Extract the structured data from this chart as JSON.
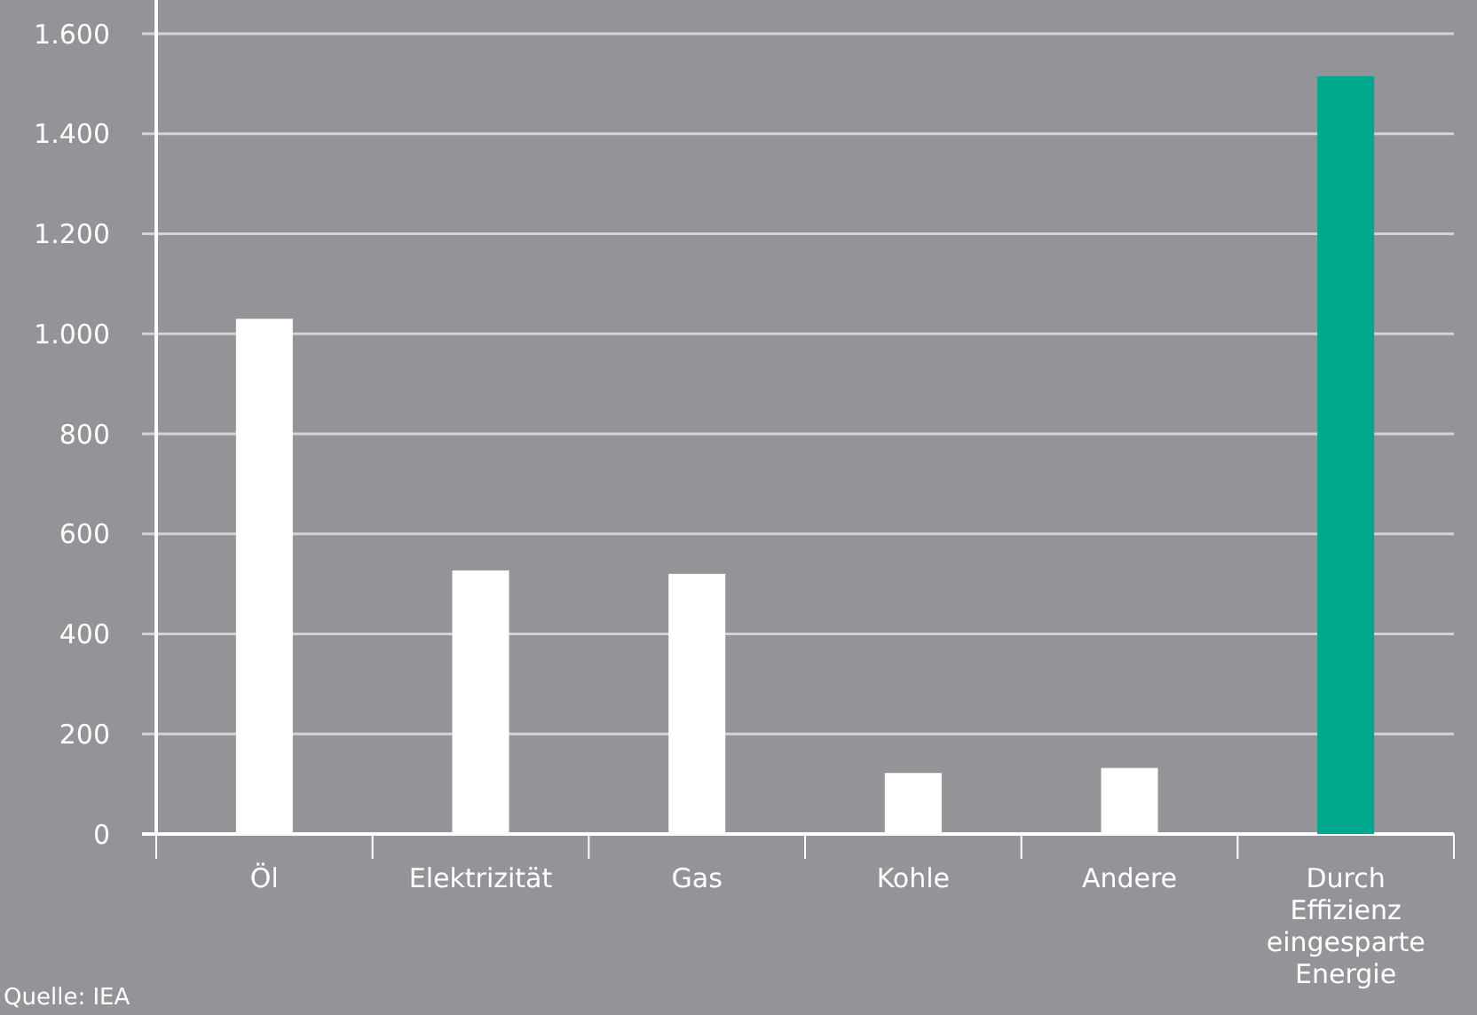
{
  "chart_data": {
    "type": "bar",
    "categories": [
      "Öl",
      "Elektrizität",
      "Gas",
      "Kohle",
      "Andere",
      "Durch Effizienz eingesparte Energie"
    ],
    "values": [
      1030,
      527,
      520,
      122,
      132,
      1515
    ],
    "colors": [
      "#ffffff",
      "#ffffff",
      "#ffffff",
      "#ffffff",
      "#ffffff",
      "#00a88e"
    ],
    "ylim": [
      0,
      1600
    ],
    "yticks": [
      0,
      200,
      400,
      600,
      800,
      {
        "value": 1000,
        "label": "1.000"
      },
      {
        "value": 1200,
        "label": "1.200"
      },
      {
        "value": 1400,
        "label": "1.400"
      },
      {
        "value": 1600,
        "label": "1.600"
      }
    ],
    "grid": "y",
    "annotations": [
      "Quelle: IEA"
    ]
  }
}
